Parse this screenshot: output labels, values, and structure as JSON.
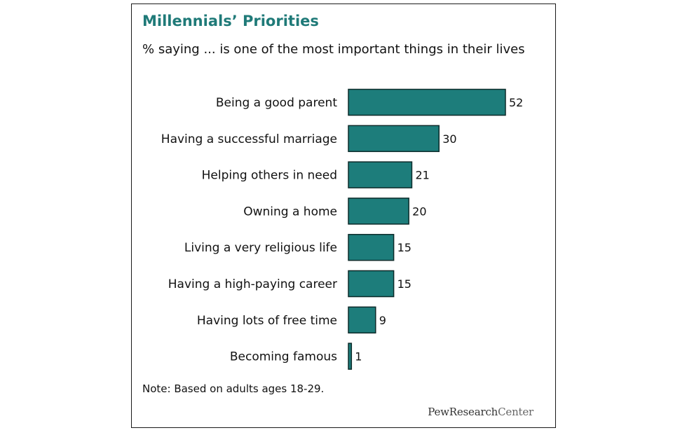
{
  "title": "Millennials’ Priorities",
  "subtitle": "% saying ... is one of the most important things in their lives",
  "note": "Note: Based on adults ages 18-29.",
  "logo": {
    "text_a": "PewResearch",
    "text_b": "Center"
  },
  "colors": {
    "bar_fill": "#1d7d7b",
    "bar_stroke": "#0d2b2a",
    "title": "#1f7a78"
  },
  "chart_data": {
    "type": "bar",
    "orientation": "horizontal",
    "categories": [
      "Being a good parent",
      "Having a successful marriage",
      "Helping others in need",
      "Owning a home",
      "Living a very religious life",
      "Having a high-paying career",
      "Having lots of free time",
      "Becoming famous"
    ],
    "values": [
      52,
      30,
      21,
      20,
      15,
      15,
      9,
      1
    ],
    "xlim": [
      0,
      52
    ],
    "grid": false,
    "data_labels": true
  }
}
